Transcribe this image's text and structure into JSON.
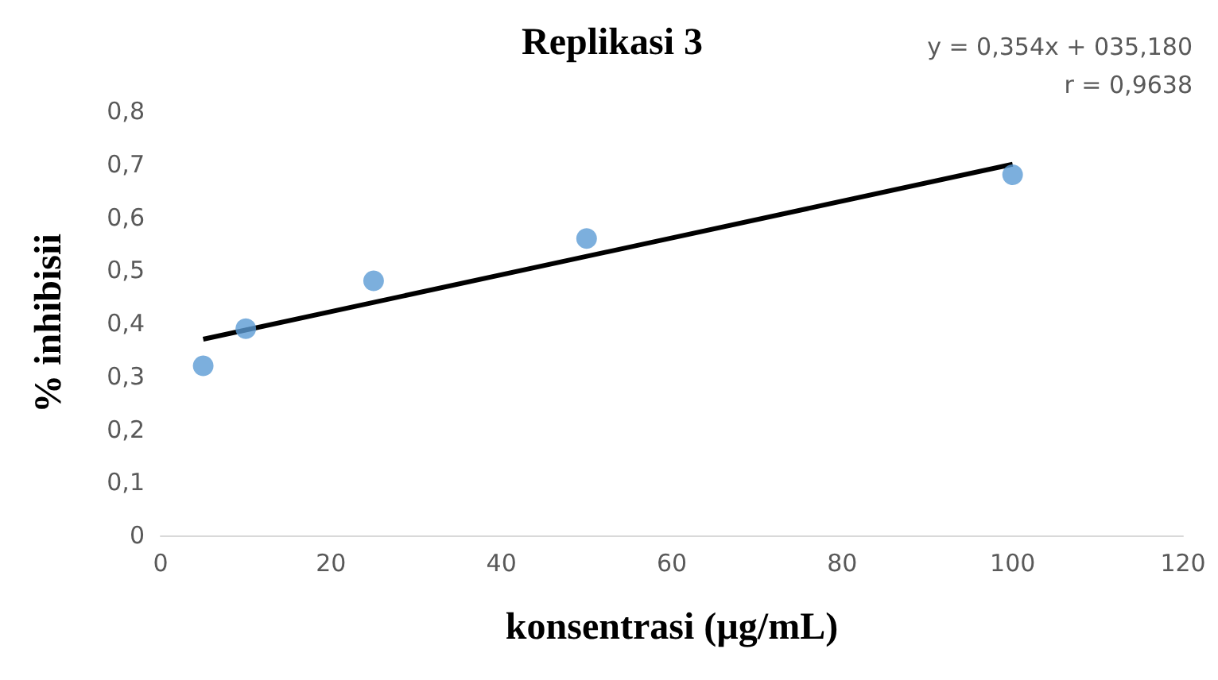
{
  "chart_data": {
    "type": "scatter",
    "title": "Replikasi 3",
    "xlabel": "konsentrasi (µg/mL)",
    "ylabel": "% inhibisii",
    "annotations": [
      "y = 0,354x + 035,180",
      "r = 0,9638"
    ],
    "xlim": [
      0,
      120
    ],
    "xticks": [
      0,
      20,
      40,
      60,
      80,
      100,
      120
    ],
    "ylim": [
      0,
      0.8
    ],
    "yticks": [
      0,
      {
        "value": 0.1,
        "label": "0,1"
      },
      {
        "value": 0.2,
        "label": "0,2"
      },
      {
        "value": 0.3,
        "label": "0,3"
      },
      {
        "value": 0.4,
        "label": "0,4"
      },
      {
        "value": 0.5,
        "label": "0,5"
      },
      {
        "value": 0.6,
        "label": "0,6"
      },
      {
        "value": 0.7,
        "label": "0,7"
      },
      {
        "value": 0.8,
        "label": "0,8"
      }
    ],
    "grid": false,
    "marker": "circle",
    "series": [
      {
        "color": "#5b9bd5",
        "x": [
          5,
          10,
          25,
          50,
          100
        ],
        "values": [
          0.32,
          0.39,
          0.48,
          0.56,
          0.68
        ]
      },
      {
        "type": "line",
        "color": "#000000",
        "marker": "none",
        "line_style": "solid",
        "x": [
          5,
          100
        ],
        "values": [
          0.37,
          0.7
        ]
      }
    ]
  }
}
